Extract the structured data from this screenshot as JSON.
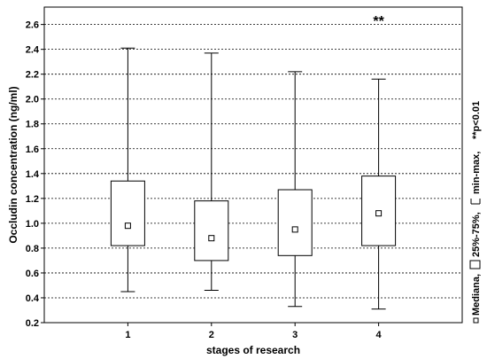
{
  "chart_data": {
    "type": "box",
    "ylabel": "Occludin concentration (ng/ml)",
    "xlabel": "stages of research",
    "ylim": [
      0.2,
      2.74
    ],
    "y_ticks": [
      0.2,
      0.4,
      0.6,
      0.8,
      1.0,
      1.2,
      1.4,
      1.6,
      1.8,
      2.0,
      2.2,
      2.4,
      2.6
    ],
    "categories": [
      "1",
      "2",
      "3",
      "4"
    ],
    "boxes": [
      {
        "min": 0.45,
        "q1": 0.82,
        "median": 0.98,
        "q3": 1.34,
        "max": 2.41
      },
      {
        "min": 0.46,
        "q1": 0.7,
        "median": 0.88,
        "q3": 1.18,
        "max": 2.37
      },
      {
        "min": 0.33,
        "q1": 0.74,
        "median": 0.95,
        "q3": 1.27,
        "max": 2.22
      },
      {
        "min": 0.31,
        "q1": 0.82,
        "median": 1.08,
        "q3": 1.38,
        "max": 2.16
      }
    ],
    "grid": true,
    "grid_style": "dotted-horizontal",
    "annotations": [
      {
        "category": "4",
        "text": "**"
      }
    ],
    "legend": {
      "position": "right-vertical",
      "median_label": "Mediana,",
      "box_label": "25%-75%,",
      "whisker_label": "min-max,",
      "note": "**p<0.01"
    }
  }
}
